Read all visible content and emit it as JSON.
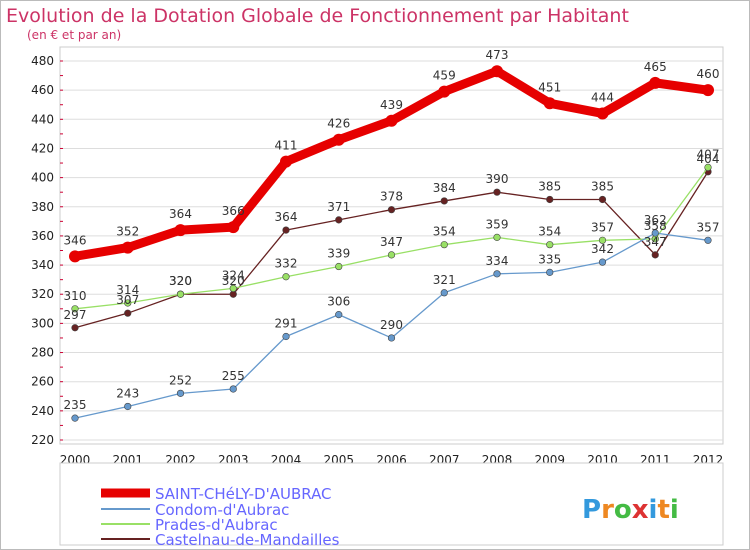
{
  "chart_data": {
    "type": "line",
    "title": "Evolution de la Dotation Globale de Fonctionnement par Habitant",
    "subtitle": "(en € et par an)",
    "categories": [
      "2000",
      "2001",
      "2002",
      "2003",
      "2004",
      "2005",
      "2006",
      "2007",
      "2008",
      "2009",
      "2010",
      "2011",
      "2012"
    ],
    "ylim": [
      220,
      480
    ],
    "yticks": [
      220,
      240,
      260,
      280,
      300,
      320,
      340,
      360,
      380,
      400,
      420,
      440,
      460,
      480
    ],
    "grid": "horizontal",
    "legend_position": "bottom-left",
    "series": [
      {
        "name": "SAINT-CHéLY-D'AUBRAC",
        "color": "#e60000",
        "values": [
          346,
          352,
          364,
          366,
          411,
          426,
          439,
          459,
          473,
          451,
          444,
          465,
          460
        ]
      },
      {
        "name": "Condom-d'Aubrac",
        "color": "#6699cc",
        "values": [
          235,
          243,
          252,
          255,
          291,
          306,
          290,
          321,
          334,
          335,
          342,
          362,
          357
        ]
      },
      {
        "name": "Prades-d'Aubrac",
        "color": "#99e066",
        "values": [
          310,
          314,
          320,
          324,
          332,
          339,
          347,
          354,
          359,
          354,
          357,
          358,
          407
        ]
      },
      {
        "name": "Castelnau-de-Mandailles",
        "color": "#662222",
        "values": [
          297,
          307,
          320,
          320,
          364,
          371,
          378,
          384,
          390,
          385,
          385,
          347,
          404
        ]
      }
    ]
  },
  "colors": {
    "title": "#cc3366",
    "legend_text": "#6666ff",
    "grid": "#dddddd",
    "plot_border": "#cccccc",
    "tick_marks": "#cc0033"
  },
  "logo": {
    "text": "Proxiti"
  }
}
